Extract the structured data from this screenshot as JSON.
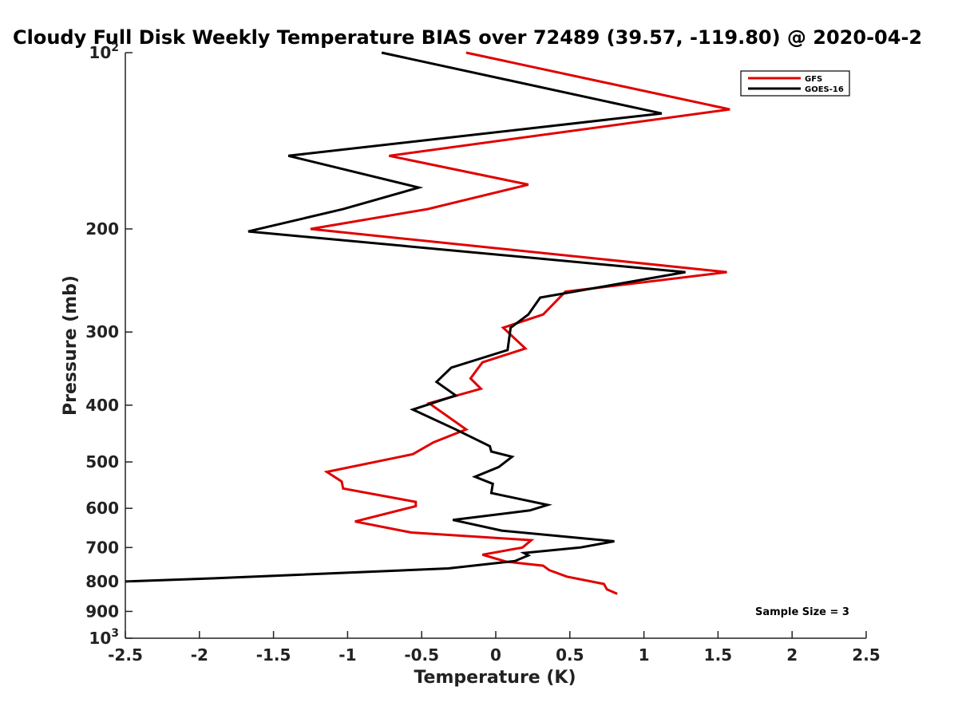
{
  "chart_data": {
    "type": "line",
    "title": "Cloudy Full Disk Weekly Temperature BIAS over 72489 (39.57, -119.80) @ 2020-04-2",
    "xlabel": "Temperature (K)",
    "ylabel": "Pressure (mb)",
    "xlim": [
      -2.5,
      2.5
    ],
    "ylim": [
      100,
      1000
    ],
    "y_scale": "log",
    "y_reversed": true,
    "x_ticks": [
      "-2.5",
      "-2",
      "-1.5",
      "-1",
      "-0.5",
      "0",
      "0.5",
      "1",
      "1.5",
      "2",
      "2.5"
    ],
    "y_ticks": [
      {
        "value": 100,
        "base": "10",
        "exp": "2"
      },
      {
        "value": 200,
        "label": "200"
      },
      {
        "value": 300,
        "label": "300"
      },
      {
        "value": 400,
        "label": "400"
      },
      {
        "value": 500,
        "label": "500"
      },
      {
        "value": 600,
        "label": "600"
      },
      {
        "value": 700,
        "label": "700"
      },
      {
        "value": 800,
        "label": "800"
      },
      {
        "value": 900,
        "label": "900"
      },
      {
        "value": 1000,
        "base": "10",
        "exp": "3"
      }
    ],
    "legend_position": "top-right",
    "grid": false,
    "series": [
      {
        "name": "GFS",
        "color": "#e00000",
        "points": [
          [
            -0.2,
            100
          ],
          [
            1.58,
            125
          ],
          [
            -0.72,
            150
          ],
          [
            0.22,
            168
          ],
          [
            -0.46,
            185
          ],
          [
            -1.25,
            200
          ],
          [
            1.56,
            237
          ],
          [
            0.47,
            256
          ],
          [
            0.32,
            280
          ],
          [
            0.05,
            295
          ],
          [
            0.2,
            320
          ],
          [
            -0.09,
            338
          ],
          [
            -0.17,
            360
          ],
          [
            -0.1,
            375
          ],
          [
            -0.45,
            397
          ],
          [
            -0.2,
            440
          ],
          [
            -0.42,
            463
          ],
          [
            -0.56,
            485
          ],
          [
            -1.14,
            520
          ],
          [
            -1.04,
            540
          ],
          [
            -1.03,
            555
          ],
          [
            -0.54,
            585
          ],
          [
            -0.54,
            595
          ],
          [
            -0.95,
            632
          ],
          [
            -0.57,
            660
          ],
          [
            0.24,
            680
          ],
          [
            0.18,
            700
          ],
          [
            -0.09,
            720
          ],
          [
            0.07,
            740
          ],
          [
            0.32,
            752
          ],
          [
            0.36,
            765
          ],
          [
            0.48,
            785
          ],
          [
            0.73,
            808
          ],
          [
            0.75,
            825
          ],
          [
            0.82,
            840
          ]
        ]
      },
      {
        "name": "GOES-16",
        "color": "#000000",
        "points": [
          [
            -0.77,
            100
          ],
          [
            1.12,
            127
          ],
          [
            -1.4,
            150
          ],
          [
            -0.52,
            170
          ],
          [
            -1.03,
            185
          ],
          [
            -1.67,
            202
          ],
          [
            1.28,
            237
          ],
          [
            0.3,
            262
          ],
          [
            0.22,
            280
          ],
          [
            0.1,
            295
          ],
          [
            0.08,
            322
          ],
          [
            -0.3,
            345
          ],
          [
            -0.4,
            365
          ],
          [
            -0.27,
            385
          ],
          [
            -0.56,
            407
          ],
          [
            -0.27,
            440
          ],
          [
            -0.04,
            470
          ],
          [
            -0.03,
            480
          ],
          [
            0.11,
            490
          ],
          [
            0.02,
            510
          ],
          [
            -0.14,
            530
          ],
          [
            -0.02,
            545
          ],
          [
            -0.03,
            565
          ],
          [
            0.35,
            592
          ],
          [
            0.23,
            605
          ],
          [
            -0.29,
            628
          ],
          [
            0.04,
            655
          ],
          [
            0.8,
            683
          ],
          [
            0.57,
            700
          ],
          [
            0.19,
            715
          ],
          [
            0.22,
            722
          ],
          [
            0.13,
            738
          ],
          [
            -0.32,
            760
          ],
          [
            -1.9,
            790
          ],
          [
            -2.5,
            800
          ]
        ]
      }
    ],
    "annotations": [
      "Sample Size = 3"
    ]
  }
}
